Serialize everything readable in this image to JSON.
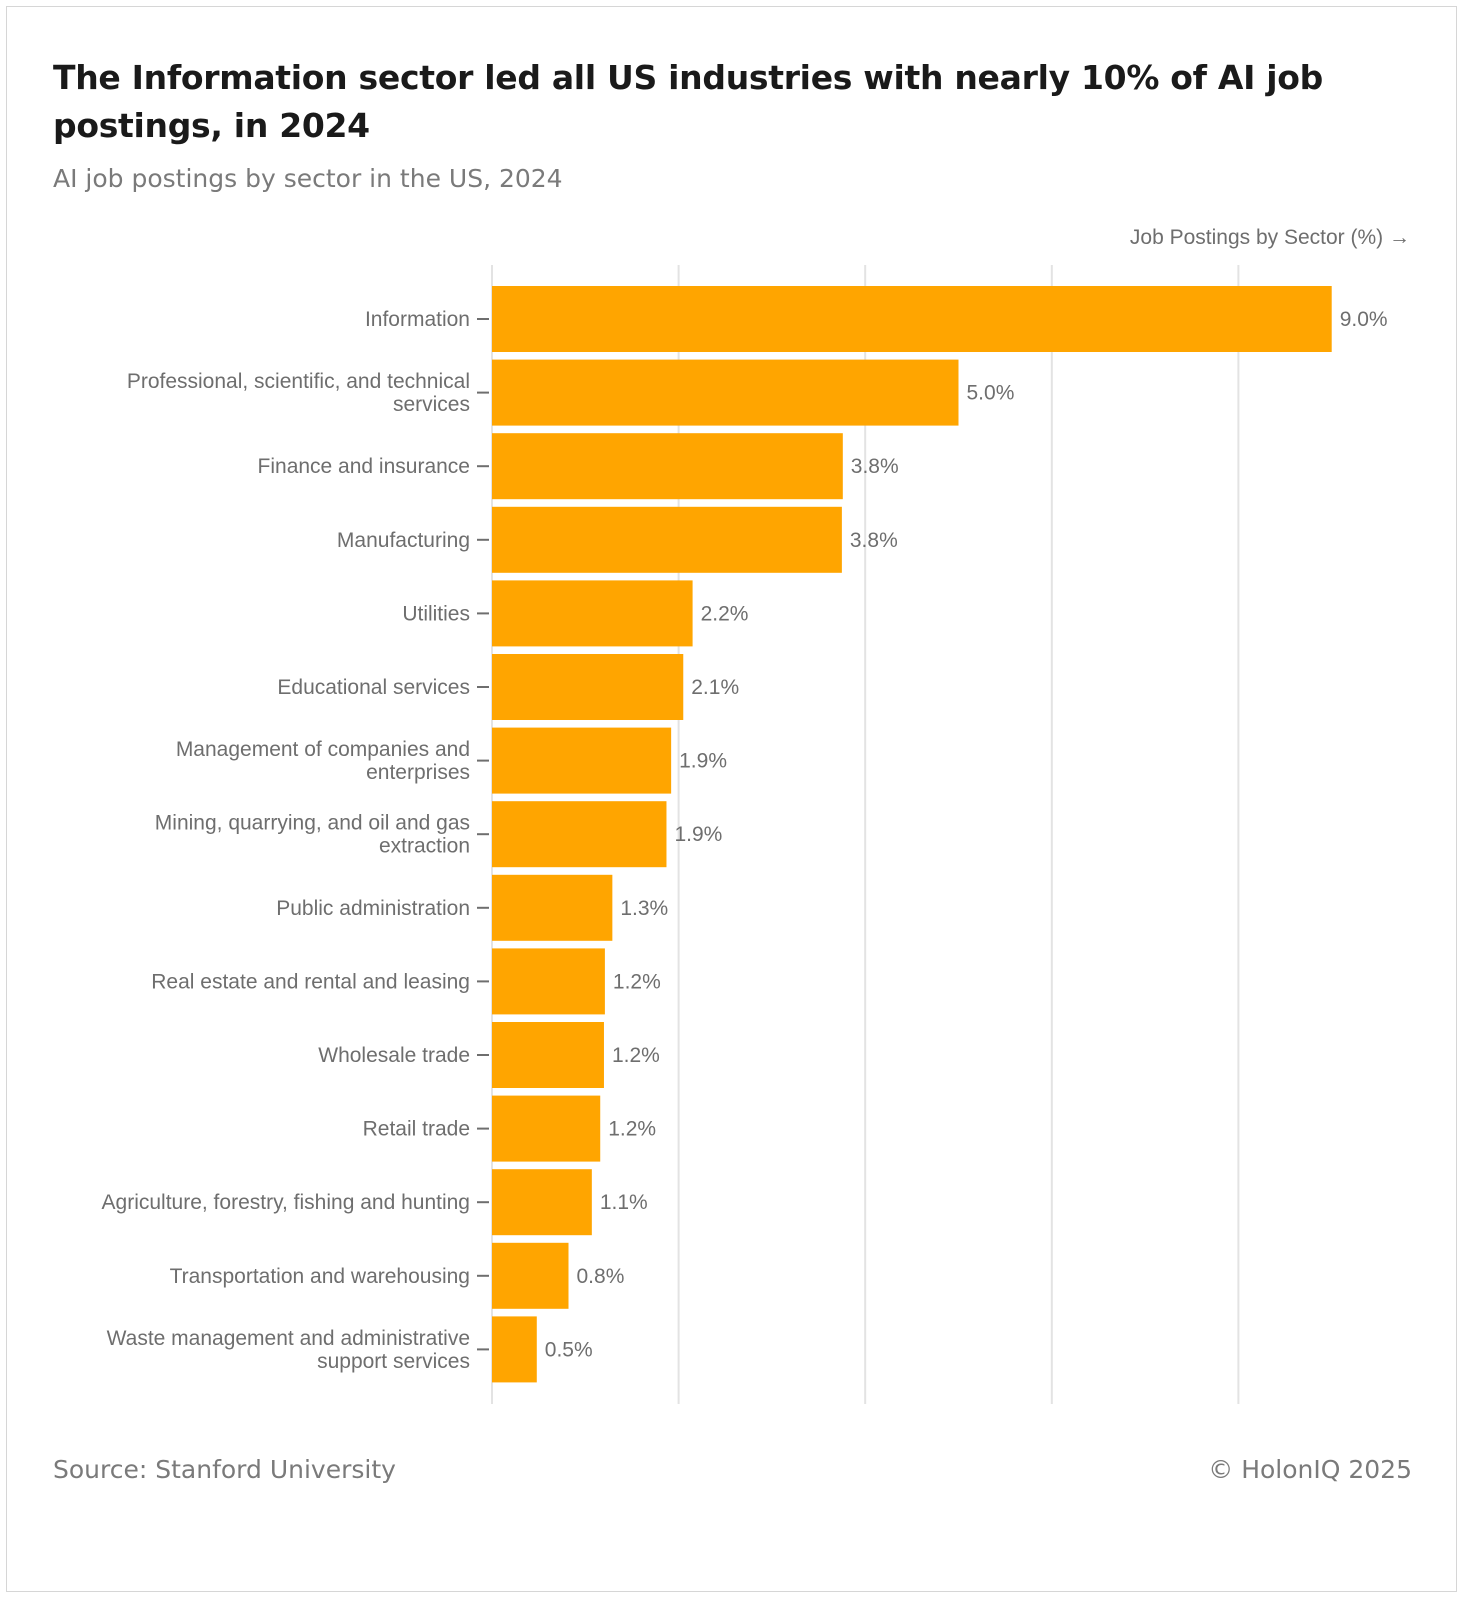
{
  "header": {
    "title": "The Information sector led all US industries with nearly 10% of AI job postings, in 2024",
    "subtitle": "AI job postings by sector in the US, 2024"
  },
  "footer": {
    "source": "Source: Stanford University",
    "copyright": "© HolonIQ 2025"
  },
  "colors": {
    "bar": "#FFA500",
    "grid": "#e3e3e3",
    "label_text": "#6e6e6e",
    "value_text": "#6e6e6e",
    "axis_title_text": "#6e6e6e"
  },
  "chart_data": {
    "type": "bar",
    "orientation": "horizontal",
    "title": "The Information sector led all US industries with nearly 10% of AI job postings, in 2024",
    "subtitle": "AI job postings by sector in the US, 2024",
    "xlabel": "Job Postings by Sector (%) →",
    "ylabel": "",
    "xlim": [
      0,
      10
    ],
    "grid": true,
    "gridlines": [
      0,
      2,
      4,
      6,
      8
    ],
    "categories": [
      [
        "Information"
      ],
      [
        "Professional, scientific, and technical",
        "services"
      ],
      [
        "Finance and insurance"
      ],
      [
        "Manufacturing"
      ],
      [
        "Utilities"
      ],
      [
        "Educational services"
      ],
      [
        "Management of companies and",
        "enterprises"
      ],
      [
        "Mining, quarrying, and oil and gas",
        "extraction"
      ],
      [
        "Public administration"
      ],
      [
        "Real estate and rental and leasing"
      ],
      [
        "Wholesale trade"
      ],
      [
        "Retail trade"
      ],
      [
        "Agriculture, forestry, fishing and hunting"
      ],
      [
        "Transportation and warehousing"
      ],
      [
        "Waste management and administrative",
        "support services"
      ]
    ],
    "values": [
      9.0,
      5.0,
      3.76,
      3.75,
      2.15,
      2.05,
      1.92,
      1.87,
      1.29,
      1.21,
      1.2,
      1.16,
      1.07,
      0.82,
      0.48
    ],
    "data_labels": [
      "9.0%",
      "5.0%",
      "3.8%",
      "3.8%",
      "2.2%",
      "2.1%",
      "1.9%",
      "1.9%",
      "1.3%",
      "1.2%",
      "1.2%",
      "1.2%",
      "1.1%",
      "0.8%",
      "0.5%"
    ]
  }
}
